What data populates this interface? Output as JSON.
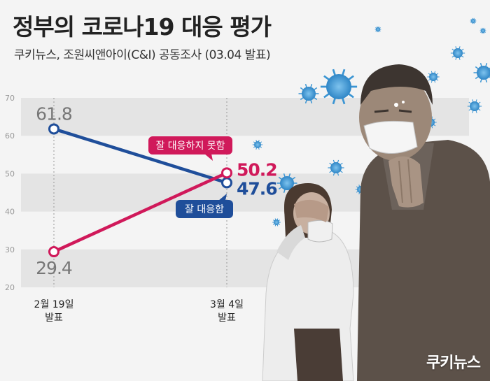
{
  "title": "정부의 코로나19 대응 평가",
  "subtitle": "쿠키뉴스, 조원씨앤아이(C&I) 공동조사 (03.04 발표)",
  "logo": "쿠키뉴스",
  "colors": {
    "positive": "#1f4e9a",
    "negative": "#d0195a",
    "band": "#e4e4e4"
  },
  "illustration": {
    "subjects": [
      "man-with-mask-icon",
      "woman-covering-face-icon",
      "virus-icon"
    ]
  },
  "chart_data": {
    "type": "line",
    "categories": [
      "2월 19일\n발표",
      "3월 4일\n발표"
    ],
    "ylim": [
      20,
      70
    ],
    "yticks": [
      20,
      30,
      40,
      50,
      60,
      70
    ],
    "grid": "alternating bands",
    "series": [
      {
        "name": "잘 대응함",
        "color": "#1f4e9a",
        "values": [
          61.8,
          47.6
        ],
        "labels": [
          "61.8",
          "47.6"
        ]
      },
      {
        "name": "잘 대응하지 못함",
        "color": "#d0195a",
        "values": [
          29.4,
          50.2
        ],
        "labels": [
          "29.4",
          "50.2"
        ]
      }
    ]
  }
}
